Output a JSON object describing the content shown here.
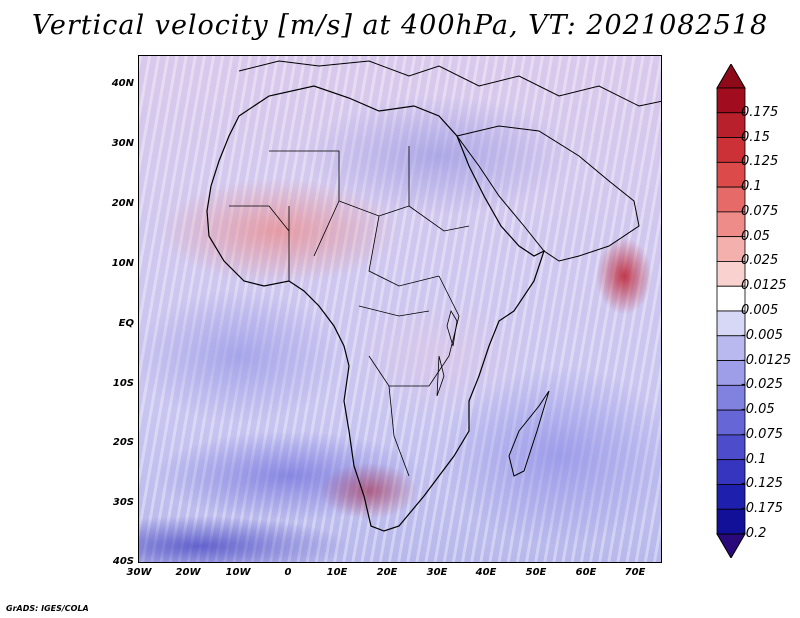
{
  "title": "Vertical velocity [m/s] at 400hPa, VT: 2021082518",
  "credit": "GrADS: IGES/COLA",
  "map": {
    "lat_labels": [
      "40N",
      "30N",
      "20N",
      "10N",
      "EQ",
      "10S",
      "20S",
      "30S",
      "40S"
    ],
    "lon_labels": [
      "30W",
      "20W",
      "10W",
      "0",
      "10E",
      "20E",
      "30E",
      "40E",
      "50E",
      "60E",
      "70E"
    ]
  },
  "colorbar": {
    "levels": [
      "0.175",
      "0.15",
      "0.125",
      "0.1",
      "0.075",
      "0.05",
      "0.025",
      "0.0125",
      "0.005",
      "-0.005",
      "-0.0125",
      "-0.025",
      "-0.05",
      "-0.075",
      "-0.1",
      "-0.125",
      "-0.175",
      "-0.2"
    ],
    "colors": [
      "#a10d1f",
      "#b8202c",
      "#cc3137",
      "#dc4a4a",
      "#e56a68",
      "#ed8c89",
      "#f4b0ad",
      "#f9d2d0",
      "#ffffff",
      "#d7d7f6",
      "#b9b9ef",
      "#9d9de8",
      "#8181e0",
      "#6666d6",
      "#4d4dcc",
      "#3535bf",
      "#1f1fad",
      "#120f98"
    ],
    "min_color": "#2a0a7a",
    "max_color": "#8e0a18"
  }
}
